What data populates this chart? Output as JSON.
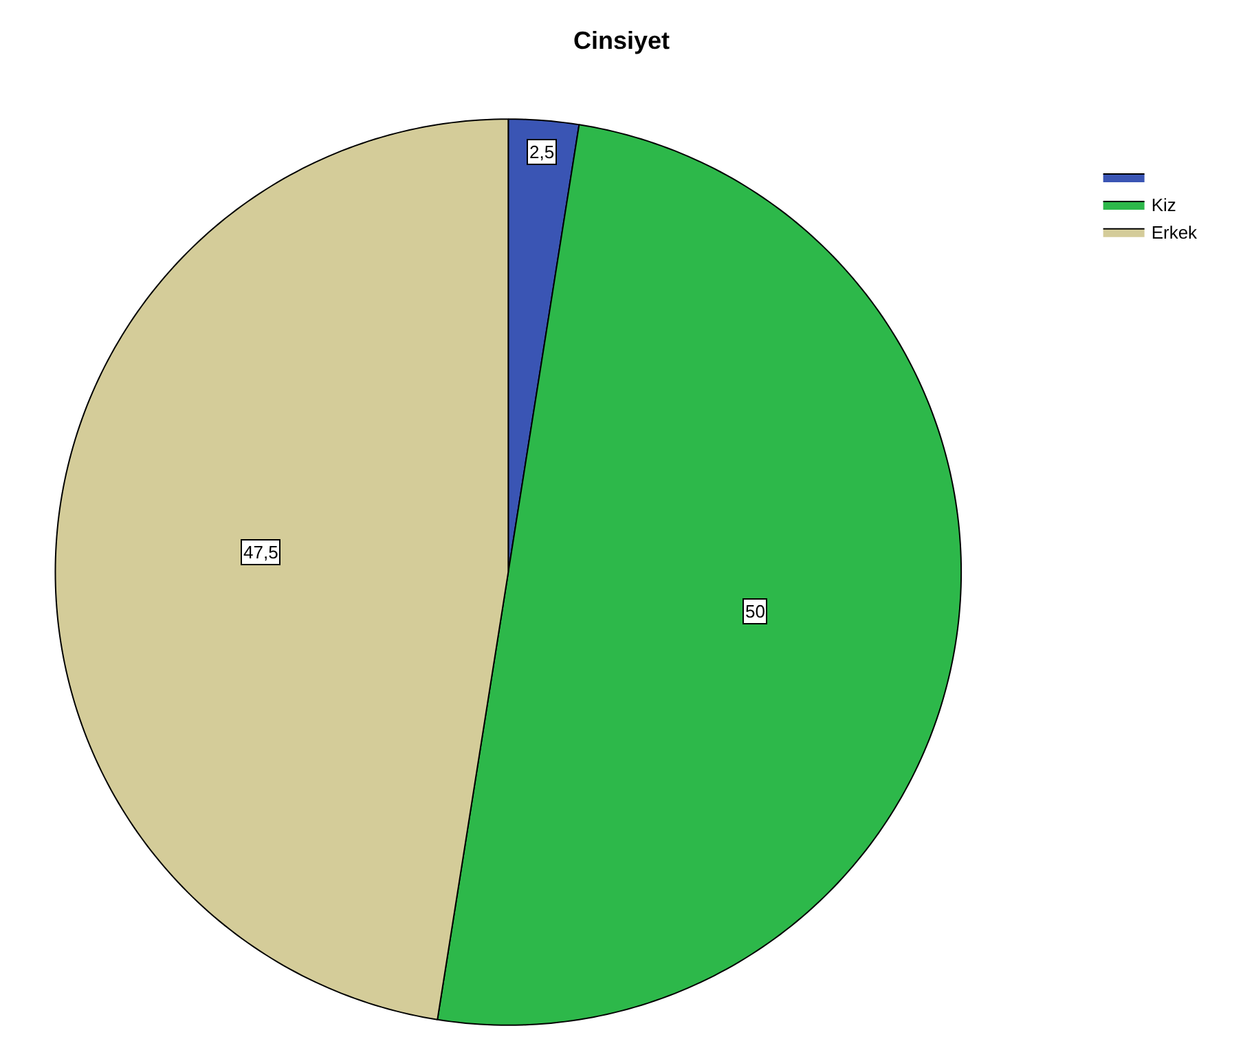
{
  "chart_data": {
    "type": "pie",
    "title": "Cinsiyet",
    "categories": [
      null,
      "Kiz",
      "Erkek"
    ],
    "values": [
      2.5,
      50,
      47.5
    ],
    "value_labels": [
      "2,5",
      "50",
      "47,5"
    ],
    "colors": [
      "#3a55b4",
      "#2db84a",
      "#d4cc99"
    ],
    "legend": "top right"
  }
}
